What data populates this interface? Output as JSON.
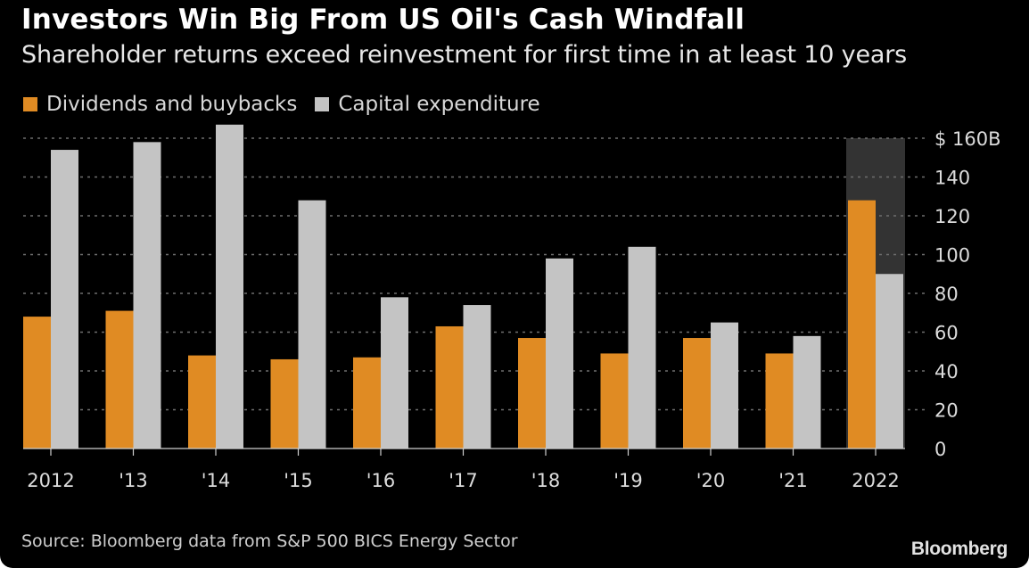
{
  "header": {
    "title": "Investors Win Big From US Oil's Cash Windfall",
    "subtitle": "Shareholder returns exceed reinvestment for first time in at least 10 years"
  },
  "footer": {
    "source": "Source: Bloomberg data from S&P 500 BICS Energy Sector",
    "brand": "Bloomberg"
  },
  "colors": {
    "background": "#000000",
    "dividends": "#e08b23",
    "capex": "#c4c4c4",
    "highlight": "#333333",
    "grid": "#6e6e6e",
    "text": "#dddddd"
  },
  "chart_data": {
    "type": "bar",
    "title": "Investors Win Big From US Oil's Cash Windfall",
    "subtitle": "Shareholder returns exceed reinvestment for first time in at least 10 years",
    "xlabel": "",
    "ylabel": "",
    "categories": [
      "2012",
      "'13",
      "'14",
      "'15",
      "'16",
      "'17",
      "'18",
      "'19",
      "'20",
      "'21",
      "2022"
    ],
    "series": [
      {
        "name": "Dividends and buybacks",
        "color": "#e08b23",
        "values": [
          68,
          71,
          48,
          46,
          47,
          63,
          57,
          49,
          57,
          49,
          128
        ]
      },
      {
        "name": "Capital expenditure",
        "color": "#c4c4c4",
        "values": [
          154,
          158,
          167,
          128,
          78,
          74,
          98,
          104,
          65,
          58,
          90
        ]
      }
    ],
    "ylim": [
      0,
      160
    ],
    "yticks": [
      0,
      20,
      40,
      60,
      80,
      100,
      120,
      140,
      160
    ],
    "ytick_labels": [
      "0",
      "20",
      "40",
      "60",
      "80",
      "100",
      "120",
      "140",
      "$ 160B"
    ],
    "y_axis_side": "right",
    "grid": true,
    "grid_style": "dotted",
    "legend": {
      "placement": "top-left",
      "entries": [
        "Dividends and buybacks",
        "Capital expenditure"
      ]
    },
    "highlight_category": "2022"
  }
}
